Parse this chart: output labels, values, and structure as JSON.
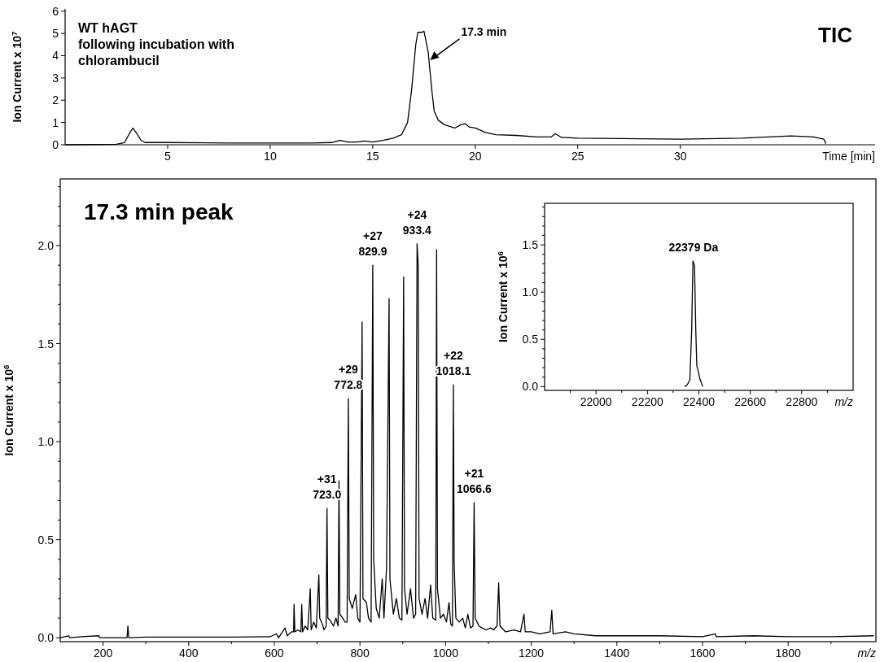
{
  "chart_data": [
    {
      "type": "line",
      "title": "TIC",
      "ylabel": "Ion Current x 10$^{7}$",
      "xlabel": "Time [min]",
      "annotations": [
        "WT hAGT\nfollowing incubation with\nchlorambucil",
        {
          "text": "17.3 min",
          "x": 17.8,
          "y": 3.8
        }
      ],
      "xlim": [
        0,
        39.5
      ],
      "ylim": [
        0,
        6.1
      ],
      "xticks": [
        5,
        10,
        15,
        20,
        25,
        30
      ],
      "yticks": [
        0,
        1,
        2,
        3,
        4,
        5,
        6
      ],
      "series": [
        {
          "color": "#000000",
          "x": [
            0,
            2.5,
            2.9,
            3.1,
            3.3,
            3.5,
            3.7,
            3.9,
            5,
            8,
            10,
            12,
            13,
            13.4,
            13.8,
            14.2,
            14.6,
            15,
            15.5,
            16,
            16.4,
            16.7,
            16.9,
            17.1,
            17.2,
            17.4,
            17.5,
            17.7,
            17.9,
            18.0,
            18.2,
            18.5,
            19.0,
            19.3,
            19.5,
            19.7,
            20.0,
            20.5,
            21,
            22,
            23,
            23.7,
            23.9,
            24.2,
            25,
            27,
            30,
            33,
            35.4,
            36.5,
            37.0,
            37.1
          ],
          "values": [
            0.0,
            0.02,
            0.1,
            0.45,
            0.75,
            0.5,
            0.2,
            0.1,
            0.1,
            0.08,
            0.08,
            0.08,
            0.1,
            0.2,
            0.12,
            0.12,
            0.17,
            0.12,
            0.2,
            0.3,
            0.45,
            1.0,
            2.5,
            4.5,
            5.05,
            5.05,
            5.1,
            4.2,
            2.3,
            1.5,
            1.1,
            0.9,
            0.75,
            0.9,
            0.95,
            0.8,
            0.75,
            0.55,
            0.45,
            0.42,
            0.35,
            0.35,
            0.5,
            0.33,
            0.3,
            0.28,
            0.25,
            0.3,
            0.4,
            0.35,
            0.25,
            0.05
          ]
        }
      ]
    },
    {
      "type": "line",
      "title": "17.3 min peak",
      "ylabel": "Ion Current x 10$^{6}$",
      "xlabel": "m/z",
      "annotations": [
        {
          "text": "+31\n723.0",
          "x": 723.0,
          "y": 0.66
        },
        {
          "text": "+29\n772.8",
          "x": 772.8,
          "y": 1.22
        },
        {
          "text": "+27\n829.9",
          "x": 829.9,
          "y": 1.9
        },
        {
          "text": "+24\n933.4",
          "x": 933.4,
          "y": 2.01
        },
        {
          "text": "+22\n1018.1",
          "x": 1018.1,
          "y": 1.29
        },
        {
          "text": "+21\n1066.6",
          "x": 1066.6,
          "y": 0.69
        }
      ],
      "xlim": [
        100,
        2005
      ],
      "ylim": [
        -0.02,
        2.34
      ],
      "xticks": [
        {
          "value": 200,
          "label": "200"
        },
        {
          "value": 300,
          "label": null
        },
        {
          "value": 400,
          "label": "400"
        },
        {
          "value": 500,
          "label": null
        },
        {
          "value": 600,
          "label": "600"
        },
        {
          "value": 700,
          "label": null
        },
        {
          "value": 800,
          "label": "800"
        },
        {
          "value": 900,
          "label": null
        },
        {
          "value": 1000,
          "label": "1000"
        },
        {
          "value": 1100,
          "label": null
        },
        {
          "value": 1200,
          "label": "1200"
        },
        {
          "value": 1300,
          "label": null
        },
        {
          "value": 1400,
          "label": "1400"
        },
        {
          "value": 1500,
          "label": null
        },
        {
          "value": 1600,
          "label": "1600"
        },
        {
          "value": 1700,
          "label": null
        },
        {
          "value": 1800,
          "label": "1800"
        },
        {
          "value": 1900,
          "label": null
        }
      ],
      "yticks": [
        {
          "value": 0,
          "label": "0.0"
        },
        {
          "value": 0.1,
          "label": null
        },
        {
          "value": 0.2,
          "label": null
        },
        {
          "value": 0.3,
          "label": null
        },
        {
          "value": 0.4,
          "label": null
        },
        {
          "value": 0.5,
          "label": "0.5"
        },
        {
          "value": 0.6,
          "label": null
        },
        {
          "value": 0.7,
          "label": null
        },
        {
          "value": 0.8,
          "label": null
        },
        {
          "value": 0.9,
          "label": null
        },
        {
          "value": 1.0,
          "label": "1.0"
        },
        {
          "value": 1.1,
          "label": null
        },
        {
          "value": 1.2,
          "label": null
        },
        {
          "value": 1.3,
          "label": null
        },
        {
          "value": 1.4,
          "label": null
        },
        {
          "value": 1.5,
          "label": "1.5"
        },
        {
          "value": 1.6,
          "label": null
        },
        {
          "value": 1.7,
          "label": null
        },
        {
          "value": 1.8,
          "label": null
        },
        {
          "value": 1.9,
          "label": null
        },
        {
          "value": 2.0,
          "label": "2.0"
        },
        {
          "value": 2.1,
          "label": null
        },
        {
          "value": 2.2,
          "label": null
        },
        {
          "value": 2.3,
          "label": null
        }
      ],
      "series": [
        {
          "color": "#000000",
          "x": [
            100,
            120,
            122,
            150,
            190,
            192,
            256,
            258,
            260,
            300,
            400,
            500,
            590,
            605,
            610,
            625,
            630,
            640,
            645,
            646,
            648,
            655,
            662,
            664,
            666,
            672,
            678,
            684,
            686,
            692,
            698,
            704,
            706,
            712,
            716,
            721,
            723,
            725,
            730,
            738,
            744,
            749,
            751,
            753,
            760,
            765,
            770,
            772.8,
            775,
            782,
            790,
            795,
            800,
            805,
            807,
            815,
            820,
            826,
            829.9,
            832,
            838,
            845,
            852,
            856,
            862,
            868,
            870,
            878,
            885,
            892,
            898,
            902,
            904,
            910,
            918,
            925,
            930,
            933.4,
            936,
            938,
            945,
            952,
            958,
            965,
            970,
            977,
            979,
            981,
            988,
            995,
            1002,
            1008,
            1012,
            1016,
            1018.1,
            1020,
            1024,
            1032,
            1040,
            1046,
            1052,
            1058,
            1064,
            1066.6,
            1069,
            1078,
            1085,
            1095,
            1105,
            1112,
            1120,
            1124,
            1127,
            1140,
            1160,
            1175,
            1183,
            1186,
            1200,
            1220,
            1244,
            1248,
            1251,
            1280,
            1300,
            1350,
            1400,
            1500,
            1600,
            1630,
            1632,
            1720,
            1800,
            1900,
            2000
          ],
          "values": [
            0.0,
            0.01,
            0.0,
            0.005,
            0.01,
            0.0,
            0.0,
            0.06,
            0.0,
            0.003,
            0.003,
            0.003,
            0.005,
            0.02,
            0.0,
            0.05,
            0.01,
            0.03,
            0.03,
            0.17,
            0.03,
            0.04,
            0.03,
            0.17,
            0.03,
            0.06,
            0.04,
            0.25,
            0.04,
            0.08,
            0.05,
            0.32,
            0.1,
            0.07,
            0.04,
            0.06,
            0.66,
            0.1,
            0.09,
            0.06,
            0.1,
            0.06,
            0.8,
            0.12,
            0.1,
            0.08,
            0.08,
            1.22,
            0.2,
            0.15,
            0.22,
            0.1,
            0.08,
            1.61,
            0.2,
            0.18,
            0.1,
            0.08,
            1.9,
            0.4,
            0.15,
            0.1,
            0.3,
            0.1,
            0.35,
            1.73,
            0.3,
            0.12,
            0.2,
            0.1,
            0.09,
            1.84,
            0.25,
            0.12,
            0.25,
            0.1,
            0.12,
            2.01,
            1.9,
            0.2,
            0.12,
            0.2,
            0.1,
            0.27,
            0.1,
            0.09,
            1.98,
            0.25,
            0.1,
            0.12,
            0.08,
            0.18,
            0.07,
            0.06,
            1.29,
            0.38,
            0.1,
            0.08,
            0.1,
            0.05,
            0.12,
            0.05,
            0.06,
            0.69,
            0.1,
            0.06,
            0.05,
            0.04,
            0.05,
            0.04,
            0.06,
            0.28,
            0.06,
            0.03,
            0.04,
            0.03,
            0.12,
            0.03,
            0.03,
            0.02,
            0.03,
            0.14,
            0.02,
            0.03,
            0.02,
            0.01,
            0.01,
            0.01,
            0.005,
            0.02,
            0.005,
            0.01,
            0.005,
            0.005,
            0.01
          ]
        }
      ]
    },
    {
      "type": "line",
      "ylabel": "Ion Current x 10$^{6}$",
      "xlabel": "m/z",
      "annotations": [
        {
          "text": "22379 Da",
          "x": 22379,
          "y": 1.33
        }
      ],
      "xlim": [
        21800,
        23000
      ],
      "ylim": [
        -0.04,
        1.94
      ],
      "xticks": [
        {
          "value": 21900,
          "label": null
        },
        {
          "value": 22000,
          "label": "22000"
        },
        {
          "value": 22100,
          "label": null
        },
        {
          "value": 22200,
          "label": "22200"
        },
        {
          "value": 22300,
          "label": null
        },
        {
          "value": 22400,
          "label": "22400"
        },
        {
          "value": 22500,
          "label": null
        },
        {
          "value": 22600,
          "label": "22600"
        },
        {
          "value": 22700,
          "label": null
        },
        {
          "value": 22800,
          "label": "22800"
        },
        {
          "value": 22900,
          "label": null
        }
      ],
      "yticks": [
        {
          "value": 0,
          "label": "0.0"
        },
        {
          "value": 0.1,
          "label": null
        },
        {
          "value": 0.2,
          "label": null
        },
        {
          "value": 0.3,
          "label": null
        },
        {
          "value": 0.4,
          "label": null
        },
        {
          "value": 0.5,
          "label": "0.5"
        },
        {
          "value": 0.6,
          "label": null
        },
        {
          "value": 0.7,
          "label": null
        },
        {
          "value": 0.8,
          "label": null
        },
        {
          "value": 0.9,
          "label": null
        },
        {
          "value": 1.0,
          "label": "1.0"
        },
        {
          "value": 1.1,
          "label": null
        },
        {
          "value": 1.2,
          "label": null
        },
        {
          "value": 1.3,
          "label": null
        },
        {
          "value": 1.4,
          "label": null
        },
        {
          "value": 1.5,
          "label": "1.5"
        },
        {
          "value": 1.6,
          "label": null
        },
        {
          "value": 1.7,
          "label": null
        },
        {
          "value": 1.8,
          "label": null
        },
        {
          "value": 1.9,
          "label": null
        }
      ],
      "series": [
        {
          "color": "#000000",
          "x": [
            22345,
            22355,
            22365,
            22372,
            22377,
            22383,
            22388,
            22392,
            22396,
            22404,
            22415
          ],
          "values": [
            0.0,
            0.02,
            0.07,
            0.6,
            1.33,
            1.28,
            0.6,
            0.22,
            0.18,
            0.08,
            0.0
          ]
        }
      ]
    }
  ]
}
